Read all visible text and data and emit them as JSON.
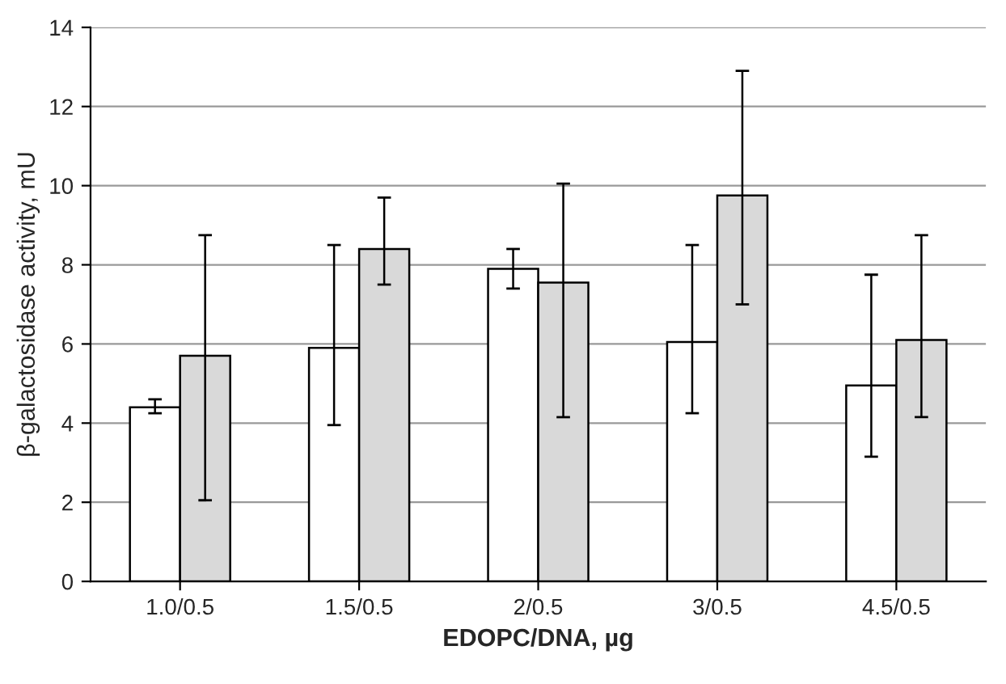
{
  "chart_data": {
    "type": "bar",
    "xlabel": "EDOPC/DNA, µg",
    "ylabel": "β-galactosidase activity, mU",
    "categories": [
      "1.0/0.5",
      "1.5/0.5",
      "2/0.5",
      "3/0.5",
      "4.5/0.5"
    ],
    "series": [
      {
        "color": "#ffffff",
        "values": [
          4.4,
          5.9,
          7.9,
          6.05,
          4.95
        ],
        "errors": [
          [
            4.25,
            4.6
          ],
          [
            3.95,
            8.5
          ],
          [
            7.4,
            8.4
          ],
          [
            4.25,
            8.5
          ],
          [
            3.15,
            7.75
          ]
        ]
      },
      {
        "color": "#d9d9d9",
        "values": [
          5.7,
          8.4,
          7.55,
          9.75,
          6.1
        ],
        "errors": [
          [
            2.05,
            8.75
          ],
          [
            7.5,
            9.7
          ],
          [
            4.15,
            10.05
          ],
          [
            7.0,
            12.9
          ],
          [
            4.15,
            8.75
          ]
        ]
      }
    ],
    "ylim": [
      0,
      14
    ],
    "yticks": [
      0,
      2,
      4,
      6,
      8,
      10,
      12,
      14
    ],
    "grid": "y"
  }
}
